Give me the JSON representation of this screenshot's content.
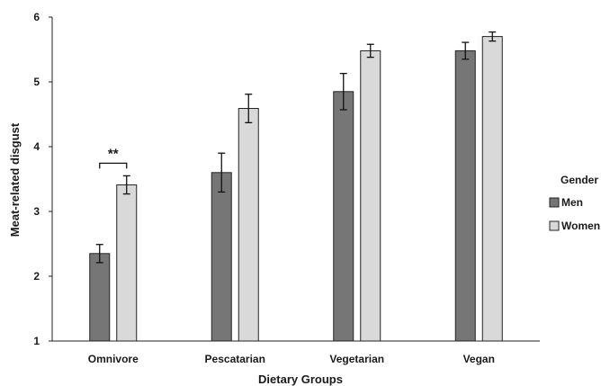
{
  "chart_data": {
    "type": "bar",
    "xlabel": "Dietary Groups",
    "ylabel": "Meat-related disgust",
    "ylim": [
      1,
      6
    ],
    "yticks": [
      "1",
      "2",
      "3",
      "4",
      "5",
      "6"
    ],
    "categories": [
      "Omnivore",
      "Pescatarian",
      "Vegetarian",
      "Vegan"
    ],
    "series": [
      {
        "name": "Men",
        "color": "#767676",
        "values": [
          2.35,
          3.6,
          4.85,
          5.48
        ],
        "errors": [
          0.14,
          0.3,
          0.28,
          0.13
        ]
      },
      {
        "name": "Women",
        "color": "#d9d9d9",
        "values": [
          3.41,
          4.59,
          5.48,
          5.7
        ],
        "errors": [
          0.14,
          0.22,
          0.1,
          0.07
        ]
      }
    ],
    "legend": {
      "title": "Gender",
      "position": "right"
    },
    "annotations": [
      {
        "text": "**",
        "category": "Omnivore"
      }
    ],
    "grid": false
  }
}
